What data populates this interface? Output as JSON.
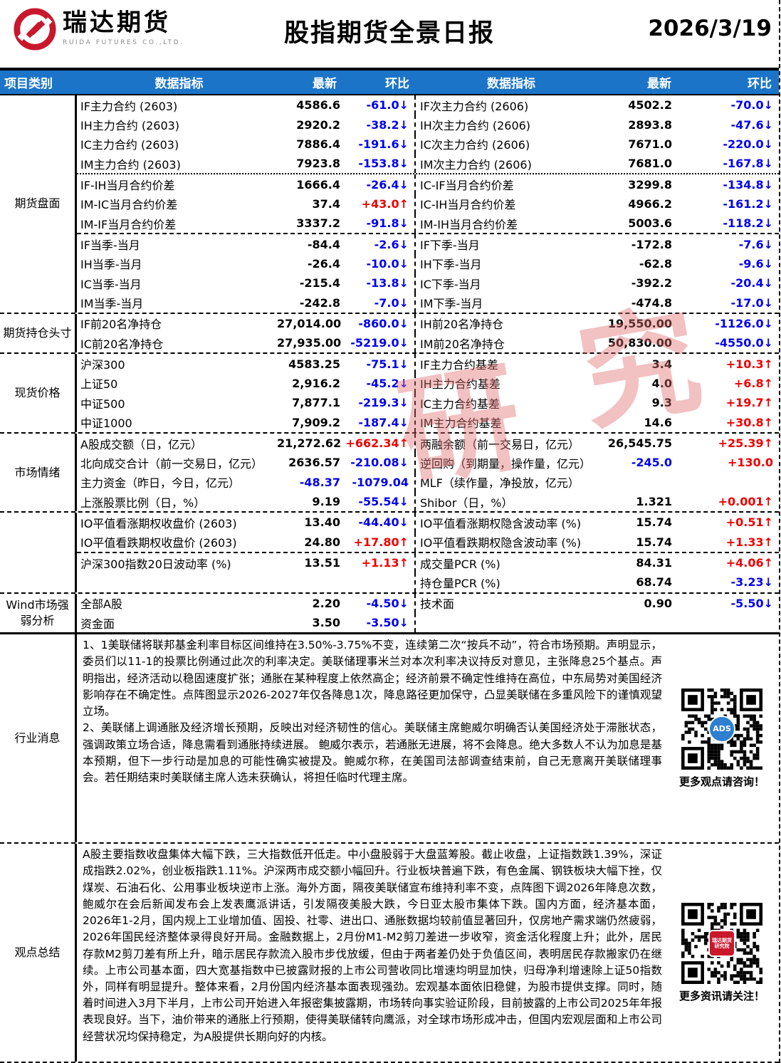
{
  "header": {
    "logo_cn": "瑞达期货",
    "logo_en": "RUIDA FUTURES CO.,LTD.",
    "title": "股指期货全景日报",
    "date": "2026/3/19"
  },
  "table_header": {
    "category": "项目类别",
    "indicator_l": "数据指标",
    "latest_l": "最新",
    "change_l": "环比",
    "indicator_r": "数据指标",
    "latest_r": "最新",
    "change_r": "环比"
  },
  "colors": {
    "header_bg": "#1b74c8",
    "up_red": "#ee0000",
    "down_blue": "#0000ee",
    "logo_red": "#c9182c"
  },
  "watermark": {
    "char1": "研",
    "char2": "究"
  },
  "sections": [
    {
      "category": "期货盘面",
      "border": "none",
      "groups": [
        {
          "sep": "none",
          "rows": [
            {
              "c": [
                "IF主力合约 (2603)",
                "4586.6",
                "-61.0↓",
                "IF次主力合约 (2606)",
                "4502.2",
                "-70.0↓"
              ]
            },
            {
              "c": [
                "IH主力合约 (2603)",
                "2920.2",
                "-38.2↓",
                "IH次主力合约 (2606)",
                "2893.8",
                "-47.6↓"
              ]
            },
            {
              "c": [
                "IC主力合约 (2603)",
                "7886.4",
                "-191.6↓",
                "IC次主力合约 (2606)",
                "7671.0",
                "-220.0↓"
              ]
            },
            {
              "c": [
                "IM主力合约 (2603)",
                "7923.8",
                "-153.8↓",
                "IM次主力合约 (2606)",
                "7681.0",
                "-167.8↓"
              ]
            }
          ]
        },
        {
          "sep": "dotted",
          "rows": [
            {
              "c": [
                "IF-IH当月合约价差",
                "1666.4",
                "-26.4↓",
                "IC-IF当月合约价差",
                "3299.8",
                "-134.8↓"
              ]
            },
            {
              "c": [
                "IM-IC当月合约价差",
                "37.4",
                "+43.0↑",
                "IC-IH当月合约价差",
                "4966.2",
                "-161.2↓"
              ]
            },
            {
              "c": [
                "IM-IF当月合约价差",
                "3337.2",
                "-91.8↓",
                "IM-IH当月合约价差",
                "5003.6",
                "-118.2↓"
              ]
            }
          ]
        },
        {
          "sep": "dashed",
          "rows": [
            {
              "c": [
                "IF当季-当月",
                "-84.4",
                "-2.6↓",
                "IF下季-当月",
                "-172.8",
                "-7.6↓"
              ]
            },
            {
              "c": [
                "IH当季-当月",
                "-26.4",
                "-10.0↓",
                "IH下季-当月",
                "-62.8",
                "-9.6↓"
              ]
            },
            {
              "c": [
                "IC当季-当月",
                "-215.4",
                "-13.8↓",
                "IC下季-当月",
                "-392.2",
                "-20.4↓"
              ]
            },
            {
              "c": [
                "IM当季-当月",
                "-242.8",
                "-7.0↓",
                "IM下季-当月",
                "-474.8",
                "-17.0↓"
              ]
            }
          ]
        }
      ]
    },
    {
      "category": "期货持仓头寸",
      "border": "dashed",
      "groups": [
        {
          "sep": "none",
          "rows": [
            {
              "c": [
                "IF前20名净持仓",
                "27,014.00",
                "-860.0↓",
                "IH前20名净持仓",
                "19,550.00",
                "-1126.0↓"
              ]
            },
            {
              "c": [
                "IC前20名净持仓",
                "27,935.00",
                "-5219.0↓",
                "IM前20名净持仓",
                "50,830.00",
                "-4550.0↓"
              ]
            }
          ]
        }
      ]
    },
    {
      "category": "现货价格",
      "border": "dashed",
      "groups": [
        {
          "sep": "none",
          "rows": [
            {
              "c": [
                "沪深300",
                "4583.25",
                "-75.1↓",
                "IF主力合约基差",
                "3.4",
                "+10.3↑"
              ]
            },
            {
              "c": [
                "上证50",
                "2,916.2",
                "-45.2↓",
                "IH主力合约基差",
                "4.0",
                "+6.8↑"
              ]
            },
            {
              "c": [
                "中证500",
                "7,877.1",
                "-219.3↓",
                "IC主力合约基差",
                "9.3",
                "+19.7↑"
              ]
            },
            {
              "c": [
                "中证1000",
                "7,909.2",
                "-187.4↓",
                "IM主力合约基差",
                "14.6",
                "+30.8↑"
              ]
            }
          ]
        }
      ]
    },
    {
      "category": "市场情绪",
      "border": "dashed",
      "groups": [
        {
          "sep": "none",
          "rows": [
            {
              "c": [
                "A股成交额（日，亿元）",
                "21,272.62",
                "+662.34↑",
                "两融余额（前一交易日，亿元）",
                "26,545.75",
                "+25.39↑"
              ]
            },
            {
              "c": [
                "北向成交合计（前一交易日，亿元）",
                "2636.57",
                "-210.08↓",
                "逆回购（到期量，操作量，亿元）",
                "-245.0",
                "+130.0"
              ],
              "blue": [
                4
              ]
            },
            {
              "c": [
                "主力资金（昨日，今日，亿元）",
                "-48.37",
                "-1079.04",
                "MLF（续作量，净投放，亿元）",
                "",
                ""
              ],
              "blue": [
                1
              ]
            },
            {
              "c": [
                "上涨股票比例（日，%）",
                "9.19",
                "-55.54↓",
                "Shibor（日，%）",
                "1.321",
                "+0.001↑"
              ]
            }
          ]
        }
      ]
    },
    {
      "category": "",
      "border": "dashed",
      "groups": [
        {
          "sep": "none",
          "rows": [
            {
              "c": [
                "IO平值看涨期权收盘价 (2603)",
                "13.40",
                "-44.40↓",
                "IO平值看涨期权隐含波动率 (%)",
                "15.74",
                "+0.51↑"
              ]
            },
            {
              "c": [
                "IO平值看跌期权收盘价 (2603)",
                "24.80",
                "+17.80↑",
                "IO平值看跌期权隐含波动率 (%)",
                "15.74",
                "+1.33↑"
              ]
            }
          ]
        },
        {
          "sep": "dashed",
          "rows": [
            {
              "c": [
                "沪深300指数20日波动率 (%)",
                "13.51",
                "+1.13↑",
                "成交量PCR (%)",
                "84.31",
                "+4.06↑"
              ]
            },
            {
              "c": [
                "",
                "",
                "",
                "持仓量PCR (%)",
                "68.74",
                "-3.23↓"
              ]
            }
          ]
        }
      ]
    },
    {
      "category": "Wind市场强弱分析",
      "border": "dashed",
      "groups": [
        {
          "sep": "none",
          "rows": [
            {
              "c": [
                "全部A股",
                "2.20",
                "-4.50↓",
                "技术面",
                "0.90",
                "-5.50↓"
              ]
            },
            {
              "c": [
                "资金面",
                "3.50",
                "-3.50↓",
                "",
                "",
                ""
              ]
            }
          ]
        }
      ]
    }
  ],
  "news": {
    "category": "行业消息",
    "paragraphs": [
      "1、1美联储将联邦基金利率目标区间维持在3.50%-3.75%不变，连续第二次“按兵不动”，符合市场预期。声明显示，委员们以11-1的投票比例通过此次的利率决定。美联储理事米兰对本次利率决议持反对意见，主张降息25个基点。声明指出，经济活动以稳固速度扩张；通胀在某种程度上依然高企；经济前景不确定性维持在高位，中东局势对美国经济影响存在不确定性。点阵图显示2026-2027年仅各降息1次，降息路径更加保守，凸显美联储在多重风险下的谨慎观望立场。",
      "2、美联储上调通胀及经济增长预期，反映出对经济韧性的信心。美联储主席鲍威尔明确否认美国经济处于滞胀状态，强调政策立场合适，降息需看到通胀持续进展。 鲍威尔表示，若通胀无进展，将不会降息。绝大多数人不认为加息是基本预期，但下一步行动是加息的可能性确实被提及。鲍威尔称，在美国司法部调查结束前，自己无意离开美联储理事会。若任期结束时美联储主席人选未获确认，将担任临时代理主席。"
    ],
    "qr_caption": "更多观点请咨询！",
    "qr_logo_text": "ADS"
  },
  "summary": {
    "category": "观点总结",
    "paragraphs": [
      "A股主要指数收盘集体大幅下跌，三大指数低开低走。中小盘股弱于大盘蓝筹股。截止收盘，上证指数跌1.39%，深证成指跌2.02%，创业板指跌1.11%。沪深两市成交额小幅回升。行业板块普遍下跌，有色金属、钢铁板块大幅下挫，仅煤炭、石油石化、公用事业板块逆市上涨。海外方面，隔夜美联储宣布维持利率不变，点阵图下调2026年降息次数，鲍威尔在会后新闻发布会上发表鹰派讲话，引发隔夜美股大跌，今日亚太股市集体下跌。国内方面，经济基本面，2026年1-2月，国内规上工业增加值、固投、社零、进出口、通胀数据均较前值显著回升，仅房地产需求端仍然疲弱，2026年国民经济整体录得良好开局。金融数据上，2月份M1-M2剪刀差进一步收窄，资金活化程度上升；此外，居民存款M2剪刀差有所上升，暗示居民存款流入股市步伐放缓，但由于两者差仍处于负值区间，表明居民存款搬家仍在继续。上市公司基本面，四大宽基指数中已披露财报的上市公司营收同比增速均明显加快，归母净利增速除上证50指数外，同样有明显提升。整体来看，2月份国内经济基本面表现强劲。宏观基本面依旧稳健，为股市提供支撑。同时，随着时间进入3月下半月，上市公司开始进入年报密集披露期，市场转向事实验证阶段，目前披露的上市公司2025年年报表现良好。当下，油价带来的通胀上行预期，使得美联储转向鹰派，对全球市场形成冲击，但国内宏观层面和上市公司经营状况均保持稳定，为A股提供长期向好的内核。"
    ],
    "qr_caption": "更多资讯请关注！",
    "qr_logo_text": "瑞达期货研究院"
  }
}
